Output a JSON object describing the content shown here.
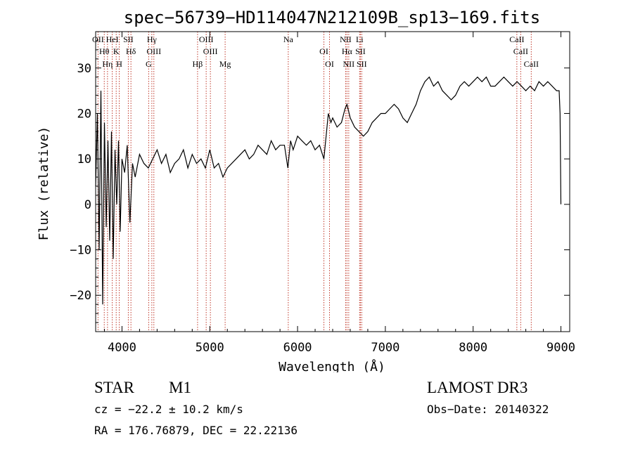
{
  "chart_data": {
    "type": "line",
    "title": "spec−56739−HD114047N212109B_sp13−169.fits",
    "xlabel": "Wavelength (Å)",
    "ylabel": "Flux (relative)",
    "xlim": [
      3700,
      9100
    ],
    "ylim": [
      -28,
      38
    ],
    "xticks": [
      4000,
      5000,
      6000,
      7000,
      8000,
      9000
    ],
    "xtick_labels": [
      "4000",
      "5000",
      "6000",
      "7000",
      "8000",
      "9000"
    ],
    "yticks": [
      -20,
      -10,
      0,
      10,
      20,
      30
    ],
    "ytick_labels": [
      "−20",
      "−10",
      "0",
      "10",
      "20",
      "30"
    ],
    "series": [
      {
        "name": "flux",
        "x": [
          3700,
          3720,
          3740,
          3760,
          3780,
          3800,
          3820,
          3840,
          3860,
          3880,
          3900,
          3920,
          3940,
          3960,
          3980,
          4000,
          4030,
          4060,
          4090,
          4120,
          4150,
          4200,
          4250,
          4300,
          4350,
          4400,
          4450,
          4500,
          4550,
          4600,
          4650,
          4700,
          4750,
          4800,
          4850,
          4900,
          4950,
          5000,
          5050,
          5100,
          5150,
          5200,
          5250,
          5300,
          5350,
          5400,
          5450,
          5500,
          5550,
          5600,
          5650,
          5700,
          5750,
          5800,
          5850,
          5890,
          5920,
          5950,
          6000,
          6050,
          6100,
          6150,
          6200,
          6250,
          6300,
          6330,
          6350,
          6380,
          6400,
          6450,
          6500,
          6540,
          6563,
          6600,
          6650,
          6700,
          6750,
          6800,
          6850,
          6900,
          6950,
          7000,
          7050,
          7100,
          7150,
          7200,
          7250,
          7300,
          7350,
          7400,
          7450,
          7500,
          7550,
          7600,
          7650,
          7700,
          7750,
          7800,
          7850,
          7900,
          7950,
          8000,
          8050,
          8100,
          8150,
          8200,
          8250,
          8300,
          8350,
          8400,
          8450,
          8500,
          8550,
          8600,
          8650,
          8700,
          8750,
          8800,
          8850,
          8900,
          8950,
          8980,
          8990,
          9000
        ],
        "y": [
          4,
          20,
          -10,
          25,
          -22,
          18,
          -5,
          14,
          -8,
          16,
          -12,
          12,
          0,
          14,
          -6,
          10,
          7,
          13,
          -4,
          9,
          6,
          11,
          9,
          8,
          10,
          12,
          9,
          11,
          7,
          9,
          10,
          12,
          8,
          11,
          9,
          10,
          8,
          12,
          8,
          9,
          6,
          8,
          9,
          10,
          11,
          12,
          10,
          11,
          13,
          12,
          11,
          14,
          12,
          13,
          13,
          8,
          14,
          12,
          15,
          14,
          13,
          14,
          12,
          13,
          10,
          16,
          20,
          18,
          19,
          17,
          18,
          21,
          22,
          19,
          17,
          16,
          15,
          16,
          18,
          19,
          20,
          20,
          21,
          22,
          21,
          19,
          18,
          20,
          22,
          25,
          27,
          28,
          26,
          27,
          25,
          24,
          23,
          24,
          26,
          27,
          26,
          27,
          28,
          27,
          28,
          26,
          26,
          27,
          28,
          27,
          26,
          27,
          26,
          25,
          26,
          25,
          27,
          26,
          27,
          26,
          25,
          25,
          20,
          0
        ]
      }
    ],
    "lines": [
      {
        "label": "OII",
        "x": 3727
      },
      {
        "label": "Hθ",
        "x": 3798
      },
      {
        "label": "Hη",
        "x": 3835
      },
      {
        "label": "HeI",
        "x": 3889
      },
      {
        "label": "K",
        "x": 3934
      },
      {
        "label": "H",
        "x": 3969
      },
      {
        "label": "SII",
        "x": 4072
      },
      {
        "label": "Hδ",
        "x": 4102
      },
      {
        "label": "G",
        "x": 4304
      },
      {
        "label": "Hγ",
        "x": 4340
      },
      {
        "label": "OIII",
        "x": 4363
      },
      {
        "label": "Hβ",
        "x": 4861
      },
      {
        "label": "OIII",
        "x": 4959
      },
      {
        "label": "OIII",
        "x": 5007
      },
      {
        "label": "Mg",
        "x": 5175
      },
      {
        "label": "Na",
        "x": 5894
      },
      {
        "label": "OI",
        "x": 6300
      },
      {
        "label": "OI",
        "x": 6364
      },
      {
        "label": "NII",
        "x": 6548
      },
      {
        "label": "Hα",
        "x": 6563
      },
      {
        "label": "NII",
        "x": 6583
      },
      {
        "label": "Li",
        "x": 6707
      },
      {
        "label": "SII",
        "x": 6716
      },
      {
        "label": "SII",
        "x": 6731
      },
      {
        "label": "CaII",
        "x": 8498
      },
      {
        "label": "CaII",
        "x": 8542
      },
      {
        "label": "CaII",
        "x": 8662
      }
    ]
  },
  "info": {
    "object_class": "STAR",
    "subclass": "M1",
    "survey": "LAMOST DR3",
    "redshift_text": "cz = −22.2 ± 10.2 km/s",
    "obs_date_text": "Obs−Date: 20140322",
    "coords_text": "RA = 176.76879, DEC =  22.22136"
  },
  "colors": {
    "line_marker": "#c0392b",
    "spectrum": "#000000"
  }
}
